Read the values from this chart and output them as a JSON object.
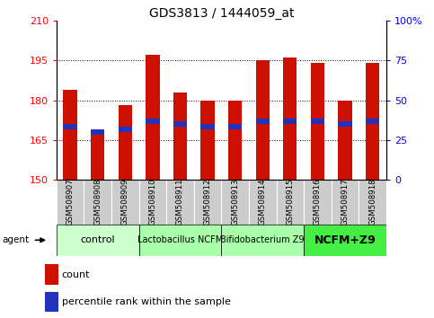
{
  "title": "GDS3813 / 1444059_at",
  "samples": [
    "GSM508907",
    "GSM508908",
    "GSM508909",
    "GSM508910",
    "GSM508911",
    "GSM508912",
    "GSM508913",
    "GSM508914",
    "GSM508915",
    "GSM508916",
    "GSM508917",
    "GSM508918"
  ],
  "bar_bottoms": [
    150,
    150,
    150,
    150,
    150,
    150,
    150,
    150,
    150,
    150,
    150,
    150
  ],
  "bar_tops": [
    184,
    168,
    178,
    197,
    183,
    180,
    180,
    195,
    196,
    194,
    180,
    194
  ],
  "blue_values": [
    170,
    168,
    169,
    172,
    171,
    170,
    170,
    172,
    172,
    172,
    171,
    172
  ],
  "bar_color": "#cc1100",
  "blue_color": "#2233bb",
  "ylim_left": [
    150,
    210
  ],
  "ylim_right": [
    0,
    100
  ],
  "yticks_left": [
    150,
    165,
    180,
    195,
    210
  ],
  "yticks_right": [
    0,
    25,
    50,
    75,
    100
  ],
  "ytick_labels_right": [
    "0",
    "25",
    "50",
    "75",
    "100%"
  ],
  "grid_lines": [
    165,
    180,
    195
  ],
  "groups": [
    {
      "label": "control",
      "start": 0,
      "end": 2,
      "color": "#ccffcc",
      "fontsize": 8,
      "bold": false
    },
    {
      "label": "Lactobacillus NCFM",
      "start": 3,
      "end": 5,
      "color": "#aaffaa",
      "fontsize": 7,
      "bold": false
    },
    {
      "label": "Bifidobacterium Z9",
      "start": 6,
      "end": 8,
      "color": "#aaffaa",
      "fontsize": 7,
      "bold": false
    },
    {
      "label": "NCFM+Z9",
      "start": 9,
      "end": 11,
      "color": "#44ee44",
      "fontsize": 9,
      "bold": true
    }
  ],
  "legend_count": "count",
  "legend_percentile": "percentile rank within the sample",
  "background_color": "#ffffff",
  "title_fontsize": 10,
  "axis_tick_fontsize": 8,
  "bar_width": 0.5,
  "label_box_color": "#cccccc"
}
